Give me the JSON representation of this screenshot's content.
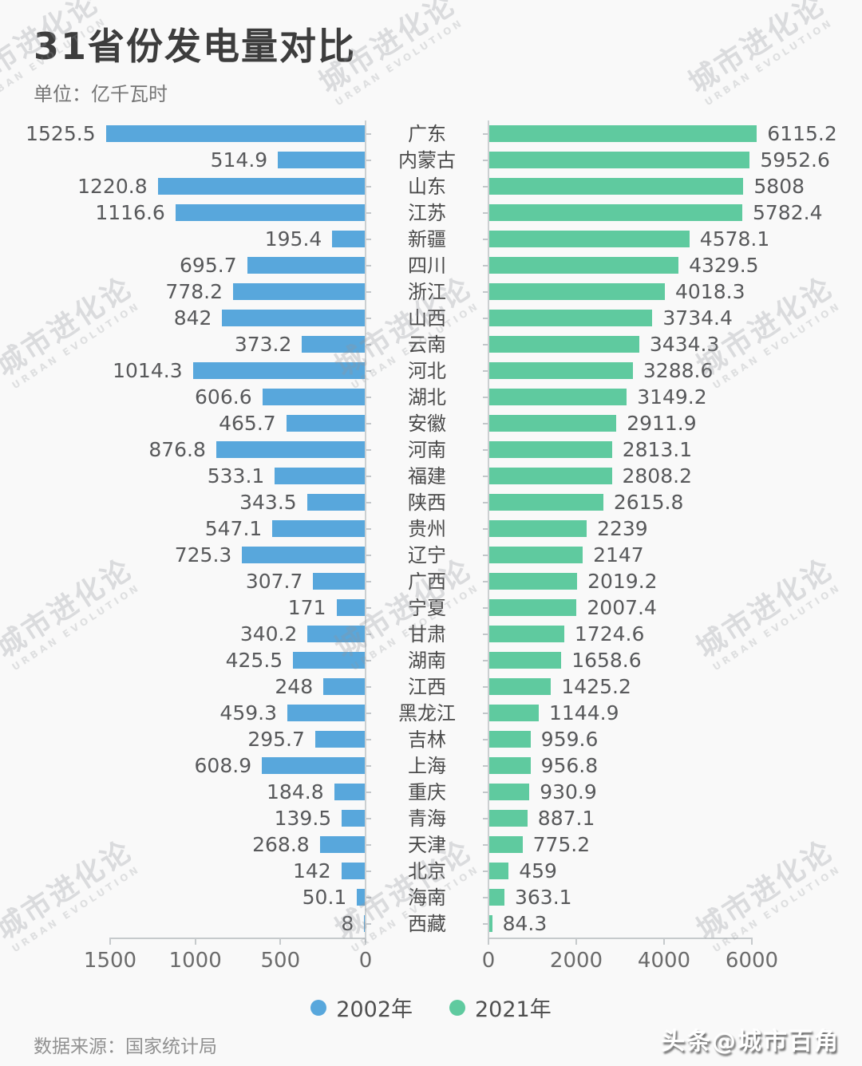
{
  "header": {
    "title": "31省份发电量对比",
    "subtitle": "单位：亿千瓦时"
  },
  "chart_data": {
    "type": "bar",
    "orientation": "horizontal-diverging",
    "title": "31省份发电量对比",
    "unit": "亿千瓦时",
    "categories": [
      "广东",
      "内蒙古",
      "山东",
      "江苏",
      "新疆",
      "四川",
      "浙江",
      "山西",
      "云南",
      "河北",
      "湖北",
      "安徽",
      "河南",
      "福建",
      "陕西",
      "贵州",
      "辽宁",
      "广西",
      "宁夏",
      "甘肃",
      "湖南",
      "江西",
      "黑龙江",
      "吉林",
      "上海",
      "重庆",
      "青海",
      "天津",
      "北京",
      "海南",
      "西藏"
    ],
    "series": [
      {
        "name": "2002年",
        "side": "left",
        "color": "#58a7dc",
        "values": [
          1525.5,
          514.9,
          1220.8,
          1116.6,
          195.4,
          695.7,
          778.2,
          842,
          373.2,
          1014.3,
          606.6,
          465.7,
          876.8,
          533.1,
          343.5,
          547.1,
          725.3,
          307.7,
          171,
          340.2,
          425.5,
          248,
          459.3,
          295.7,
          608.9,
          184.8,
          139.5,
          268.8,
          142,
          50.1,
          8
        ]
      },
      {
        "name": "2021年",
        "side": "right",
        "color": "#5fca9f",
        "values": [
          6115.2,
          5952.6,
          5808,
          5782.4,
          4578.1,
          4329.5,
          4018.3,
          3734.4,
          3434.3,
          3288.6,
          3149.2,
          2911.9,
          2813.1,
          2808.2,
          2615.8,
          2239,
          2147,
          2019.2,
          2007.4,
          1724.6,
          1658.6,
          1425.2,
          1144.9,
          959.6,
          956.8,
          930.9,
          887.1,
          775.2,
          459,
          363.1,
          84.3
        ]
      }
    ],
    "left_axis": {
      "max": 1500,
      "ticks": [
        1500,
        1000,
        500,
        0
      ]
    },
    "right_axis": {
      "max": 6000,
      "ticks": [
        0,
        2000,
        4000,
        6000
      ]
    },
    "legend_position": "bottom-center",
    "grid": false,
    "value_labels": "outside"
  },
  "legend": {
    "items": [
      {
        "label": "2002年",
        "color": "#58a7dc"
      },
      {
        "label": "2021年",
        "color": "#5fca9f"
      }
    ]
  },
  "footer": {
    "source": "数据来源：国家统计局",
    "credit": "头条@城市百角"
  },
  "watermark": {
    "line1": "城市进化论",
    "line2": "URBAN EVOLUTION"
  }
}
